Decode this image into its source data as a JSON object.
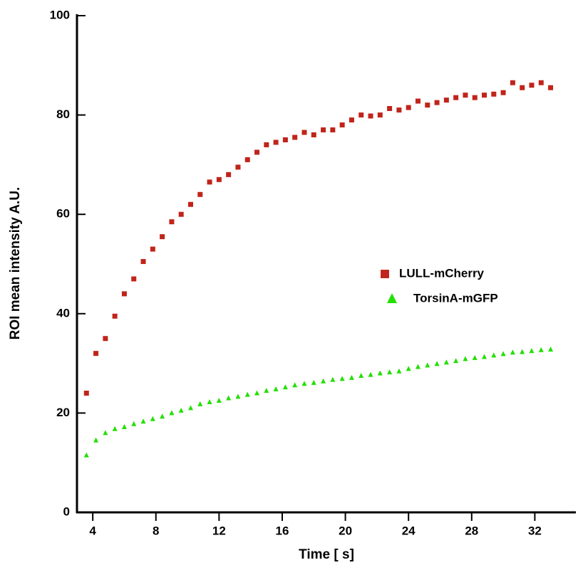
{
  "chart_data": {
    "type": "scatter",
    "x_label": "Time [ s]",
    "y_label": "ROI mean intensity A.U.",
    "x": [
      3.6,
      4.2,
      4.8,
      5.4,
      6.0,
      6.6,
      7.2,
      7.8,
      8.4,
      9.0,
      9.6,
      10.2,
      10.8,
      11.4,
      12.0,
      12.6,
      13.2,
      13.8,
      14.4,
      15.0,
      15.6,
      16.2,
      16.8,
      17.4,
      18.0,
      18.6,
      19.2,
      19.8,
      20.4,
      21.0,
      21.6,
      22.2,
      22.8,
      23.4,
      24.0,
      24.6,
      25.2,
      25.8,
      26.4,
      27.0,
      27.6,
      28.2,
      28.8,
      29.4,
      30.0,
      30.6,
      31.2,
      31.8,
      32.4,
      33.0
    ],
    "series": [
      {
        "name": "LULL-mCherry",
        "color": "#c0241a",
        "marker": "square",
        "values": [
          24,
          32,
          35,
          39.5,
          44,
          47,
          50.5,
          53,
          55.5,
          58.5,
          60,
          62,
          64,
          66.5,
          67,
          68,
          69.5,
          71,
          72.5,
          74,
          74.5,
          75,
          75.5,
          76.5,
          76,
          77,
          77,
          78,
          79,
          80,
          79.8,
          80,
          81.3,
          81,
          81.5,
          82.8,
          82,
          82.5,
          83,
          83.5,
          84,
          83.5,
          84,
          84.2,
          84.5,
          86.5,
          85.5,
          86,
          86.5,
          85.5
        ]
      },
      {
        "name": "TorsinA-mGFP",
        "color": "#22e000",
        "marker": "triangle",
        "values": [
          11.5,
          14.5,
          16,
          16.8,
          17.2,
          17.8,
          18.3,
          18.8,
          19.3,
          20,
          20.5,
          21,
          21.8,
          22.2,
          22.5,
          23,
          23.3,
          23.7,
          24,
          24.5,
          24.8,
          25.2,
          25.6,
          25.9,
          26.1,
          26.4,
          26.7,
          26.9,
          27.1,
          27.5,
          27.7,
          28,
          28.2,
          28.4,
          28.9,
          29.3,
          29.6,
          29.9,
          30.2,
          30.5,
          30.9,
          31.1,
          31.3,
          31.6,
          31.9,
          32.2,
          32.3,
          32.5,
          32.7,
          32.8
        ]
      }
    ],
    "xlim": [
      3,
      34.6
    ],
    "xticks": [
      4,
      8,
      12,
      16,
      20,
      24,
      28,
      32
    ],
    "ylim": [
      0,
      100
    ],
    "yticks": [
      0,
      20,
      40,
      60,
      80,
      100
    ],
    "grid": false,
    "legend": "center right"
  }
}
